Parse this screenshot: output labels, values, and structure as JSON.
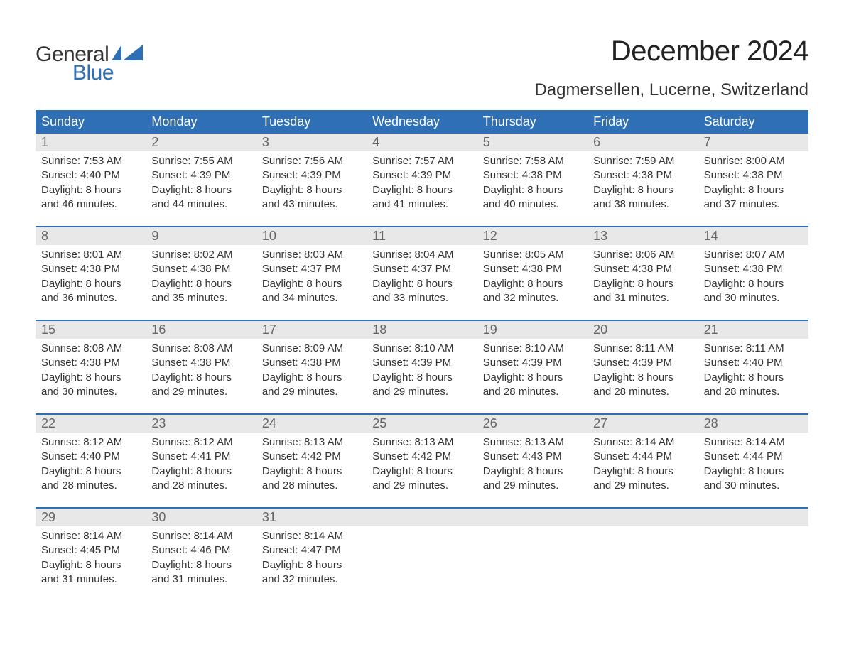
{
  "logo": {
    "text1": "General",
    "text2": "Blue"
  },
  "title": "December 2024",
  "location": "Dagmersellen, Lucerne, Switzerland",
  "colors": {
    "header_bg": "#2f6fb5",
    "header_text": "#ffffff",
    "daynum_bg": "#e8e8e8",
    "daynum_text": "#666666",
    "body_text": "#333333",
    "page_bg": "#ffffff",
    "logo_blue": "#2f6fb5"
  },
  "dayNames": [
    "Sunday",
    "Monday",
    "Tuesday",
    "Wednesday",
    "Thursday",
    "Friday",
    "Saturday"
  ],
  "weeks": [
    [
      {
        "num": "1",
        "sunrise": "Sunrise: 7:53 AM",
        "sunset": "Sunset: 4:40 PM",
        "day1": "Daylight: 8 hours",
        "day2": "and 46 minutes."
      },
      {
        "num": "2",
        "sunrise": "Sunrise: 7:55 AM",
        "sunset": "Sunset: 4:39 PM",
        "day1": "Daylight: 8 hours",
        "day2": "and 44 minutes."
      },
      {
        "num": "3",
        "sunrise": "Sunrise: 7:56 AM",
        "sunset": "Sunset: 4:39 PM",
        "day1": "Daylight: 8 hours",
        "day2": "and 43 minutes."
      },
      {
        "num": "4",
        "sunrise": "Sunrise: 7:57 AM",
        "sunset": "Sunset: 4:39 PM",
        "day1": "Daylight: 8 hours",
        "day2": "and 41 minutes."
      },
      {
        "num": "5",
        "sunrise": "Sunrise: 7:58 AM",
        "sunset": "Sunset: 4:38 PM",
        "day1": "Daylight: 8 hours",
        "day2": "and 40 minutes."
      },
      {
        "num": "6",
        "sunrise": "Sunrise: 7:59 AM",
        "sunset": "Sunset: 4:38 PM",
        "day1": "Daylight: 8 hours",
        "day2": "and 38 minutes."
      },
      {
        "num": "7",
        "sunrise": "Sunrise: 8:00 AM",
        "sunset": "Sunset: 4:38 PM",
        "day1": "Daylight: 8 hours",
        "day2": "and 37 minutes."
      }
    ],
    [
      {
        "num": "8",
        "sunrise": "Sunrise: 8:01 AM",
        "sunset": "Sunset: 4:38 PM",
        "day1": "Daylight: 8 hours",
        "day2": "and 36 minutes."
      },
      {
        "num": "9",
        "sunrise": "Sunrise: 8:02 AM",
        "sunset": "Sunset: 4:38 PM",
        "day1": "Daylight: 8 hours",
        "day2": "and 35 minutes."
      },
      {
        "num": "10",
        "sunrise": "Sunrise: 8:03 AM",
        "sunset": "Sunset: 4:37 PM",
        "day1": "Daylight: 8 hours",
        "day2": "and 34 minutes."
      },
      {
        "num": "11",
        "sunrise": "Sunrise: 8:04 AM",
        "sunset": "Sunset: 4:37 PM",
        "day1": "Daylight: 8 hours",
        "day2": "and 33 minutes."
      },
      {
        "num": "12",
        "sunrise": "Sunrise: 8:05 AM",
        "sunset": "Sunset: 4:38 PM",
        "day1": "Daylight: 8 hours",
        "day2": "and 32 minutes."
      },
      {
        "num": "13",
        "sunrise": "Sunrise: 8:06 AM",
        "sunset": "Sunset: 4:38 PM",
        "day1": "Daylight: 8 hours",
        "day2": "and 31 minutes."
      },
      {
        "num": "14",
        "sunrise": "Sunrise: 8:07 AM",
        "sunset": "Sunset: 4:38 PM",
        "day1": "Daylight: 8 hours",
        "day2": "and 30 minutes."
      }
    ],
    [
      {
        "num": "15",
        "sunrise": "Sunrise: 8:08 AM",
        "sunset": "Sunset: 4:38 PM",
        "day1": "Daylight: 8 hours",
        "day2": "and 30 minutes."
      },
      {
        "num": "16",
        "sunrise": "Sunrise: 8:08 AM",
        "sunset": "Sunset: 4:38 PM",
        "day1": "Daylight: 8 hours",
        "day2": "and 29 minutes."
      },
      {
        "num": "17",
        "sunrise": "Sunrise: 8:09 AM",
        "sunset": "Sunset: 4:38 PM",
        "day1": "Daylight: 8 hours",
        "day2": "and 29 minutes."
      },
      {
        "num": "18",
        "sunrise": "Sunrise: 8:10 AM",
        "sunset": "Sunset: 4:39 PM",
        "day1": "Daylight: 8 hours",
        "day2": "and 29 minutes."
      },
      {
        "num": "19",
        "sunrise": "Sunrise: 8:10 AM",
        "sunset": "Sunset: 4:39 PM",
        "day1": "Daylight: 8 hours",
        "day2": "and 28 minutes."
      },
      {
        "num": "20",
        "sunrise": "Sunrise: 8:11 AM",
        "sunset": "Sunset: 4:39 PM",
        "day1": "Daylight: 8 hours",
        "day2": "and 28 minutes."
      },
      {
        "num": "21",
        "sunrise": "Sunrise: 8:11 AM",
        "sunset": "Sunset: 4:40 PM",
        "day1": "Daylight: 8 hours",
        "day2": "and 28 minutes."
      }
    ],
    [
      {
        "num": "22",
        "sunrise": "Sunrise: 8:12 AM",
        "sunset": "Sunset: 4:40 PM",
        "day1": "Daylight: 8 hours",
        "day2": "and 28 minutes."
      },
      {
        "num": "23",
        "sunrise": "Sunrise: 8:12 AM",
        "sunset": "Sunset: 4:41 PM",
        "day1": "Daylight: 8 hours",
        "day2": "and 28 minutes."
      },
      {
        "num": "24",
        "sunrise": "Sunrise: 8:13 AM",
        "sunset": "Sunset: 4:42 PM",
        "day1": "Daylight: 8 hours",
        "day2": "and 28 minutes."
      },
      {
        "num": "25",
        "sunrise": "Sunrise: 8:13 AM",
        "sunset": "Sunset: 4:42 PM",
        "day1": "Daylight: 8 hours",
        "day2": "and 29 minutes."
      },
      {
        "num": "26",
        "sunrise": "Sunrise: 8:13 AM",
        "sunset": "Sunset: 4:43 PM",
        "day1": "Daylight: 8 hours",
        "day2": "and 29 minutes."
      },
      {
        "num": "27",
        "sunrise": "Sunrise: 8:14 AM",
        "sunset": "Sunset: 4:44 PM",
        "day1": "Daylight: 8 hours",
        "day2": "and 29 minutes."
      },
      {
        "num": "28",
        "sunrise": "Sunrise: 8:14 AM",
        "sunset": "Sunset: 4:44 PM",
        "day1": "Daylight: 8 hours",
        "day2": "and 30 minutes."
      }
    ],
    [
      {
        "num": "29",
        "sunrise": "Sunrise: 8:14 AM",
        "sunset": "Sunset: 4:45 PM",
        "day1": "Daylight: 8 hours",
        "day2": "and 31 minutes."
      },
      {
        "num": "30",
        "sunrise": "Sunrise: 8:14 AM",
        "sunset": "Sunset: 4:46 PM",
        "day1": "Daylight: 8 hours",
        "day2": "and 31 minutes."
      },
      {
        "num": "31",
        "sunrise": "Sunrise: 8:14 AM",
        "sunset": "Sunset: 4:47 PM",
        "day1": "Daylight: 8 hours",
        "day2": "and 32 minutes."
      },
      null,
      null,
      null,
      null
    ]
  ]
}
